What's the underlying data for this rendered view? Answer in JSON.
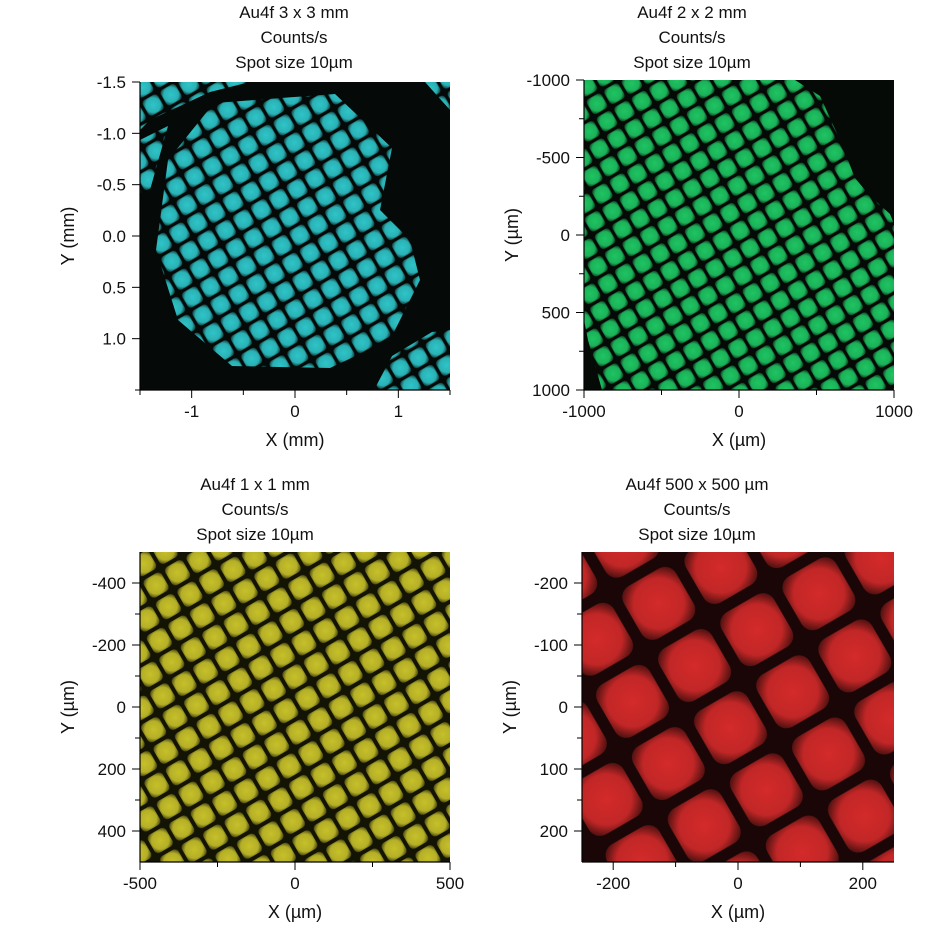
{
  "chart_data": [
    {
      "type": "heatmap",
      "title": [
        "Au4f 3 x 3 mm",
        "Counts/s",
        "Spot size 10µm"
      ],
      "xlabel": "X (mm)",
      "ylabel": "Y (mm)",
      "xlim": [
        -1.5,
        1.5
      ],
      "ylim": [
        -1.5,
        1.5
      ],
      "y_inverted": true,
      "xticks": [
        {
          "v": -1,
          "label": "-1"
        },
        {
          "v": 0,
          "label": "0"
        },
        {
          "v": 1,
          "label": "1"
        }
      ],
      "xminor": [
        -1.5,
        -0.5,
        0.5,
        1.5
      ],
      "yticks": [
        {
          "v": -1.5,
          "label": "-1.5"
        },
        {
          "v": -1.0,
          "label": "-1.0"
        },
        {
          "v": -0.5,
          "label": "-0.5"
        },
        {
          "v": 0.0,
          "label": "0.0"
        },
        {
          "v": 0.5,
          "label": "0.5"
        },
        {
          "v": 1.0,
          "label": "1.0"
        }
      ],
      "yminor": [
        1.5
      ],
      "color": "#2ec4c8",
      "background": "#050a08",
      "grid_pitch": 0.2,
      "grid_angle_deg": -30
    },
    {
      "type": "heatmap",
      "title": [
        "Au4f 2 x 2 mm",
        "Counts/s",
        "Spot size 10µm"
      ],
      "xlabel": "X (µm)",
      "ylabel": "Y (µm)",
      "xlim": [
        -1000,
        1000
      ],
      "ylim": [
        -1000,
        1000
      ],
      "y_inverted": true,
      "xticks": [
        {
          "v": -1000,
          "label": "-1000"
        },
        {
          "v": 0,
          "label": "0"
        },
        {
          "v": 1000,
          "label": "1000"
        }
      ],
      "xminor": [
        -500,
        500
      ],
      "yticks": [
        {
          "v": -1000,
          "label": "-1000"
        },
        {
          "v": -500,
          "label": "-500"
        },
        {
          "v": 0,
          "label": "0"
        },
        {
          "v": 500,
          "label": "500"
        },
        {
          "v": 1000,
          "label": "1000"
        }
      ],
      "yminor": [
        -750,
        -250,
        250,
        750
      ],
      "color": "#1ec462",
      "background": "#050a06",
      "grid_pitch": 130,
      "grid_angle_deg": -30
    },
    {
      "type": "heatmap",
      "title": [
        "Au4f 1 x 1 mm",
        "Counts/s",
        "Spot size 10µm"
      ],
      "xlabel": "X (µm)",
      "ylabel": "Y (µm)",
      "xlim": [
        -500,
        500
      ],
      "ylim": [
        -500,
        500
      ],
      "y_inverted": true,
      "xticks": [
        {
          "v": -500,
          "label": "-500"
        },
        {
          "v": 0,
          "label": "0"
        },
        {
          "v": 500,
          "label": "500"
        }
      ],
      "xminor": [
        -250,
        250
      ],
      "yticks": [
        {
          "v": -400,
          "label": "-400"
        },
        {
          "v": -200,
          "label": "-200"
        },
        {
          "v": 0,
          "label": "0"
        },
        {
          "v": 200,
          "label": "200"
        },
        {
          "v": 400,
          "label": "400"
        }
      ],
      "yminor": [
        -300,
        -100,
        100,
        300
      ],
      "color": "#c6c02a",
      "background": "#141405",
      "grid_pitch": 80,
      "grid_angle_deg": -30
    },
    {
      "type": "heatmap",
      "title": [
        "Au4f 500 x 500 µm",
        "Counts/s",
        "Spot size 10µm"
      ],
      "xlabel": "X (µm)",
      "ylabel": "Y (µm)",
      "xlim": [
        -250,
        250
      ],
      "ylim": [
        -250,
        250
      ],
      "y_inverted": true,
      "xticks": [
        {
          "v": -200,
          "label": "-200"
        },
        {
          "v": 0,
          "label": "0"
        },
        {
          "v": 200,
          "label": "200"
        }
      ],
      "xminor": [
        -100,
        100
      ],
      "yticks": [
        {
          "v": -200,
          "label": "-200"
        },
        {
          "v": -100,
          "label": "-100"
        },
        {
          "v": 0,
          "label": "0"
        },
        {
          "v": 100,
          "label": "100"
        },
        {
          "v": 200,
          "label": "200"
        }
      ],
      "yminor": [
        -150,
        -50,
        50,
        150
      ],
      "color": "#d42a2a",
      "background": "#1a0606",
      "grid_pitch": 115,
      "grid_angle_deg": -30
    }
  ]
}
